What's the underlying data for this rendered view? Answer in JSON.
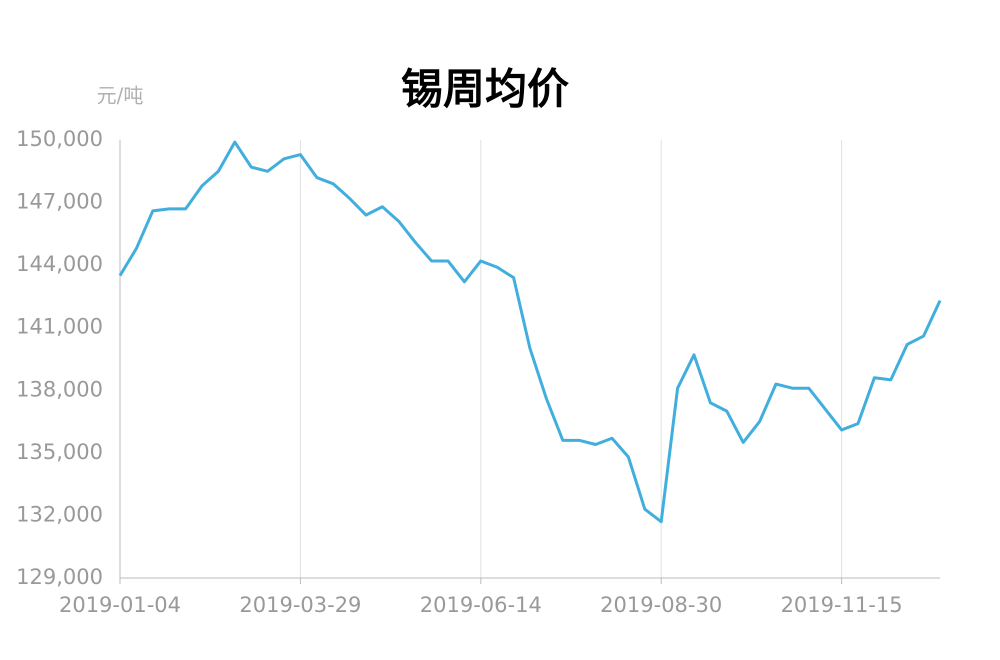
{
  "chart_data": {
    "type": "line",
    "title": "锡周均价",
    "y_unit": "元/吨",
    "categories": [
      "2019-01-04",
      null,
      null,
      null,
      null,
      null,
      null,
      null,
      null,
      null,
      null,
      "2019-03-29",
      null,
      null,
      null,
      null,
      null,
      null,
      null,
      null,
      null,
      null,
      "2019-06-14",
      null,
      null,
      null,
      null,
      null,
      null,
      null,
      null,
      null,
      null,
      "2019-08-30",
      null,
      null,
      null,
      null,
      null,
      null,
      null,
      null,
      null,
      null,
      "2019-11-15",
      null,
      null,
      null,
      null,
      null,
      null
    ],
    "series": [
      {
        "name": "锡周均价",
        "color": "#41aede",
        "values": [
          143500,
          144800,
          146600,
          146700,
          146700,
          147800,
          148500,
          149900,
          148700,
          148500,
          149100,
          149300,
          148200,
          147900,
          147200,
          146400,
          146800,
          146100,
          145100,
          144200,
          144200,
          143200,
          144200,
          143900,
          143400,
          140000,
          137600,
          135600,
          135600,
          135400,
          135700,
          134800,
          132300,
          131700,
          138100,
          139700,
          137400,
          137000,
          135500,
          136500,
          138300,
          138100,
          138100,
          137100,
          136100,
          136400,
          138600,
          138500,
          140200,
          140600,
          142300
        ]
      }
    ],
    "ylim": [
      129000,
      150000
    ],
    "yticks": [
      {
        "value": 129000,
        "label": "129,000"
      },
      {
        "value": 132000,
        "label": "132,000"
      },
      {
        "value": 135000,
        "label": "135,000"
      },
      {
        "value": 138000,
        "label": "138,000"
      },
      {
        "value": 141000,
        "label": "141,000"
      },
      {
        "value": 144000,
        "label": "144,000"
      },
      {
        "value": 147000,
        "label": "147,000"
      },
      {
        "value": 150000,
        "label": "150,000"
      }
    ],
    "grid": true
  }
}
